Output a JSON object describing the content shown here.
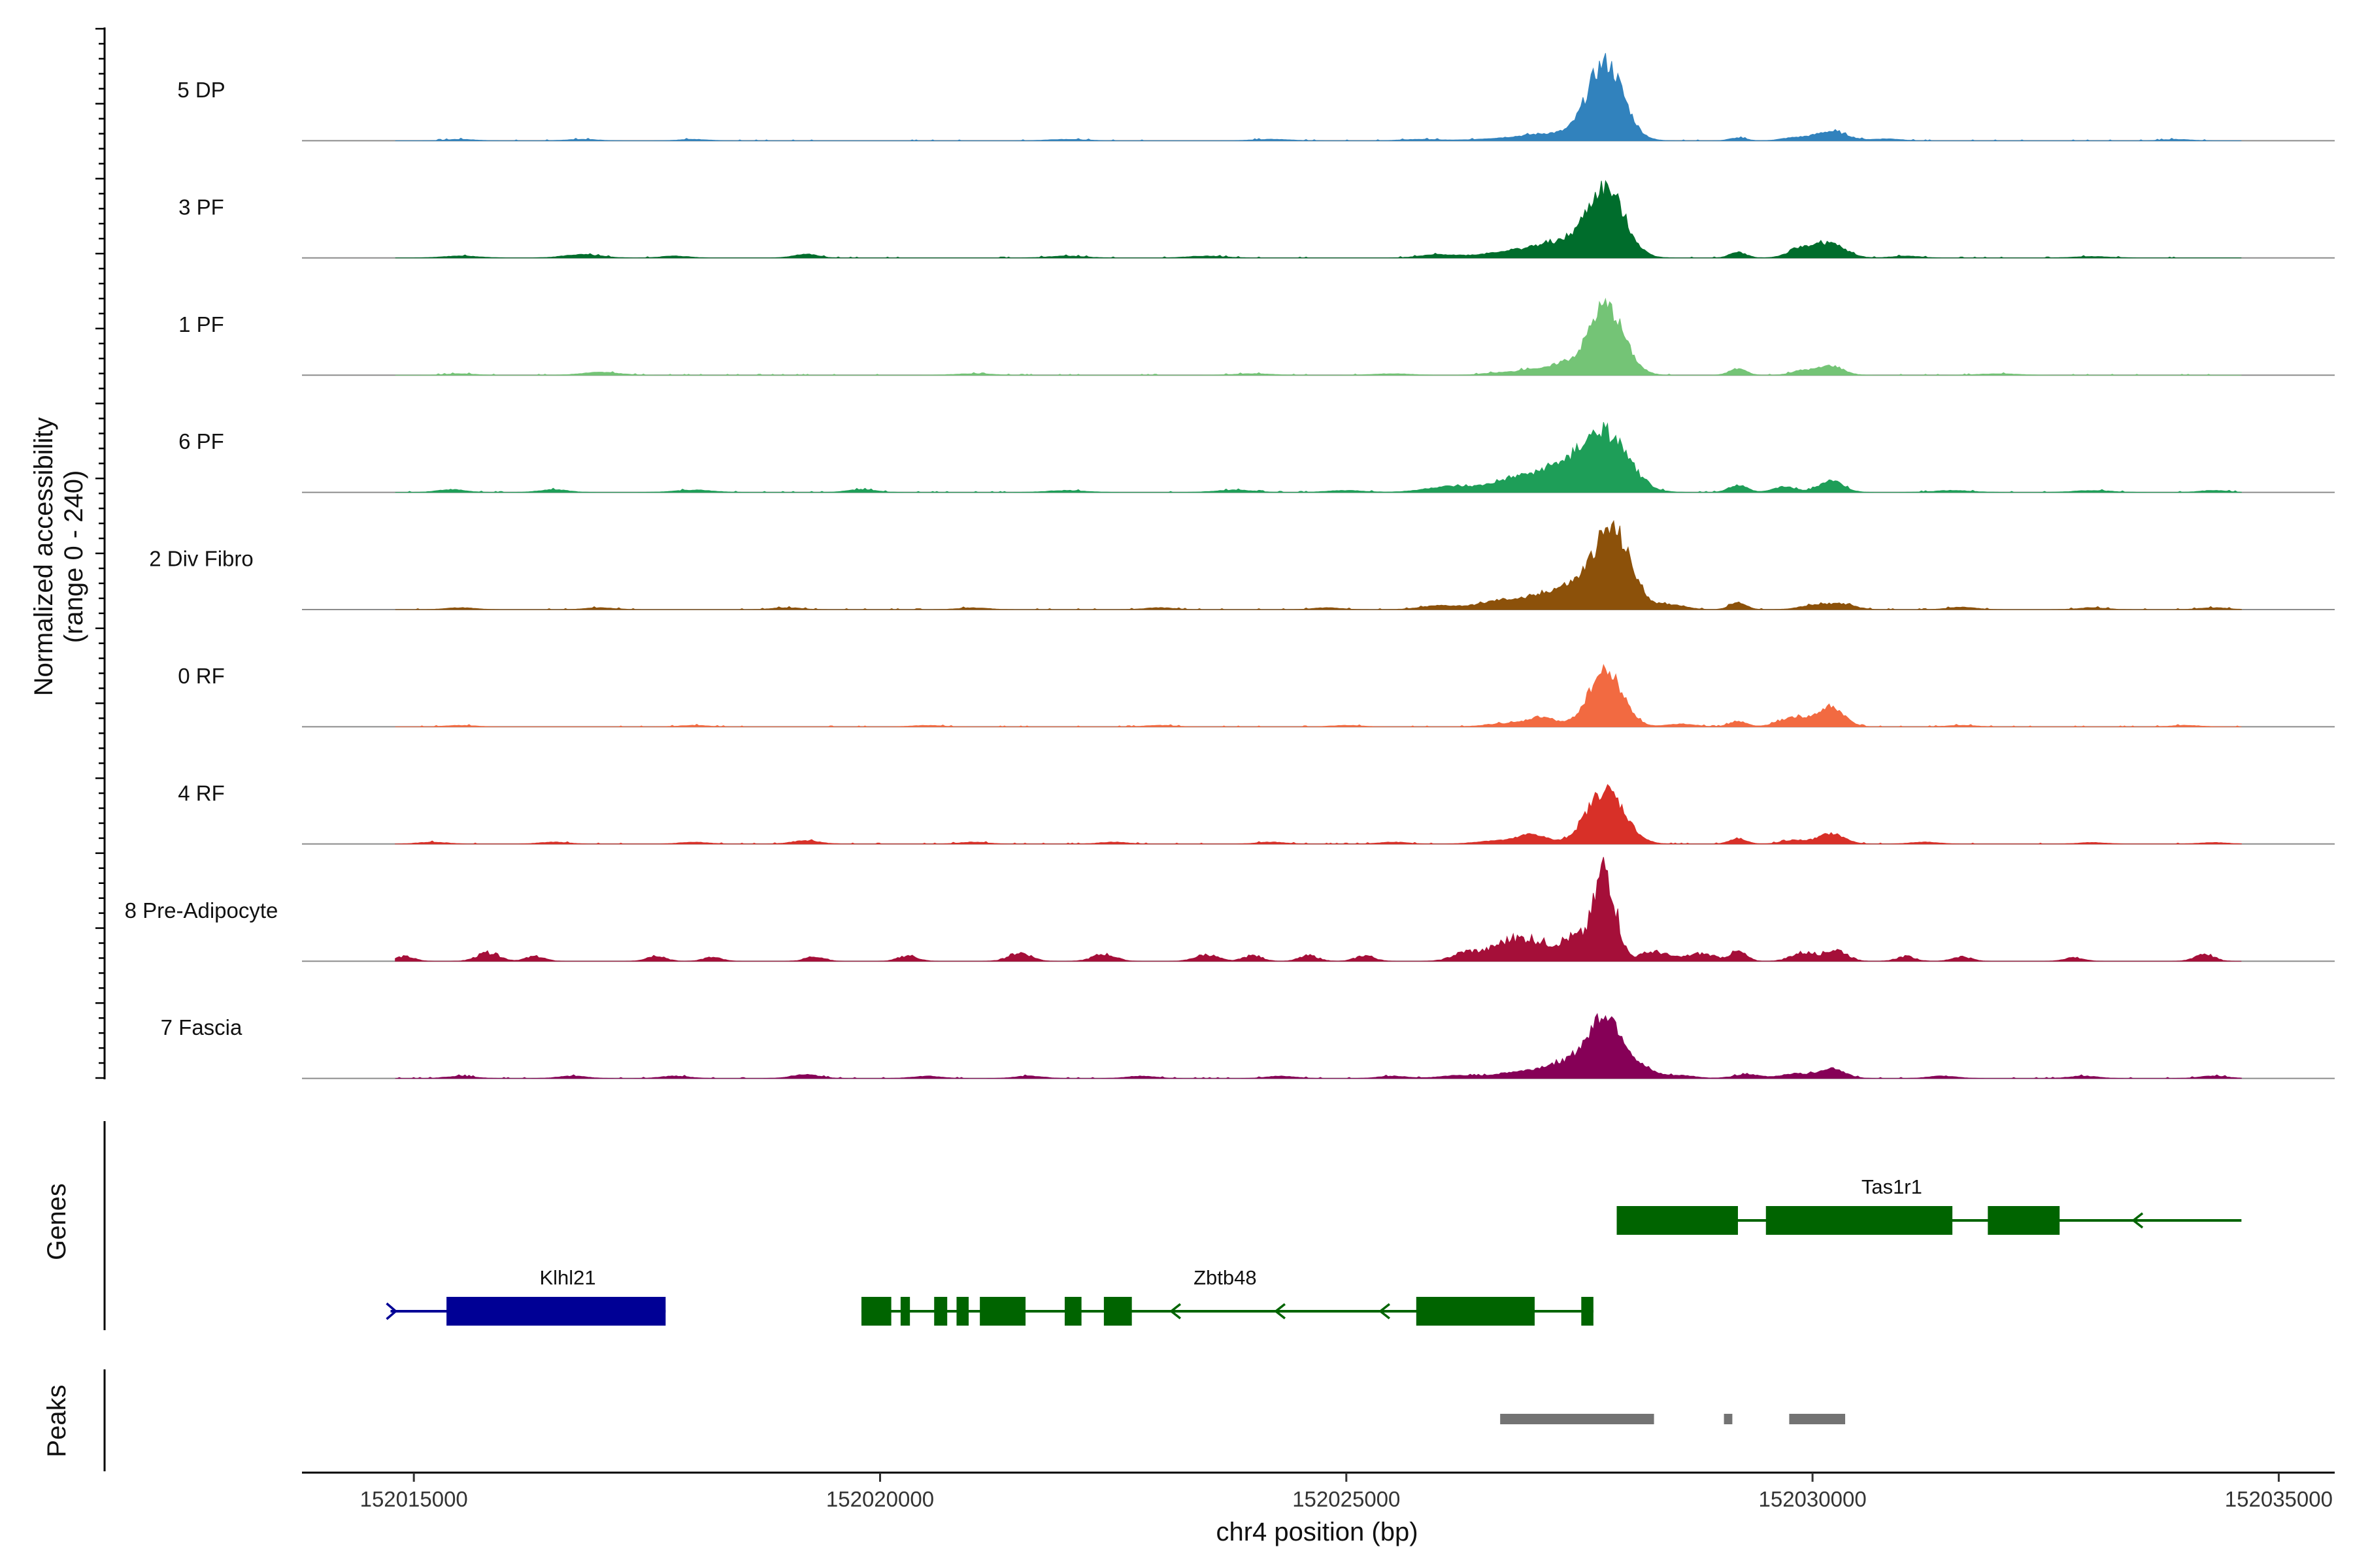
{
  "chart_data": {
    "type": "area",
    "title": "",
    "ylabel": "Normalized accessibility\n(range 0 - 240)",
    "xlabel": "chr4 position (bp)",
    "chromosome": "chr4",
    "xlim": [
      152013800,
      152035600
    ],
    "ylim": [
      0,
      240
    ],
    "x_ticks": [
      152015000,
      152020000,
      152025000,
      152030000,
      152035000
    ],
    "x_tick_labels": [
      "152015000",
      "152020000",
      "152025000",
      "152030000",
      "152035000"
    ],
    "coverage_range": [
      152014800,
      152034600
    ],
    "tracks": [
      {
        "name": "5 DP",
        "color": "#3182bd",
        "peaks": [
          [
            152027780,
            165,
            190
          ],
          [
            152027200,
            14,
            260
          ],
          [
            152026700,
            5,
            300
          ],
          [
            152029200,
            6,
            90
          ],
          [
            152030200,
            20,
            170
          ],
          [
            152029800,
            6,
            140
          ],
          [
            152033900,
            3,
            140
          ],
          [
            152022000,
            3,
            200
          ],
          [
            152018000,
            3,
            150
          ],
          [
            152016800,
            3,
            160
          ],
          [
            152015500,
            3,
            150
          ],
          [
            152030800,
            4,
            150
          ],
          [
            152024200,
            3,
            200
          ],
          [
            152025800,
            3,
            200
          ]
        ]
      },
      {
        "name": "3 PF",
        "color": "#006d2c",
        "peaks": [
          [
            152027780,
            145,
            200
          ],
          [
            152027250,
            30,
            260
          ],
          [
            152026700,
            12,
            260
          ],
          [
            152026000,
            7,
            200
          ],
          [
            152029200,
            12,
            90
          ],
          [
            152029900,
            20,
            150
          ],
          [
            152030200,
            28,
            160
          ],
          [
            152019200,
            8,
            130
          ],
          [
            152016800,
            7,
            200
          ],
          [
            152022000,
            4,
            200
          ],
          [
            152023500,
            4,
            200
          ],
          [
            152015500,
            4,
            200
          ],
          [
            152017800,
            4,
            150
          ],
          [
            152031000,
            4,
            150
          ],
          [
            152033000,
            3,
            200
          ]
        ]
      },
      {
        "name": "1 PF",
        "color": "#74c476",
        "peaks": [
          [
            152027780,
            150,
            190
          ],
          [
            152027300,
            22,
            120
          ],
          [
            152027000,
            12,
            120
          ],
          [
            152026700,
            6,
            200
          ],
          [
            152029200,
            14,
            90
          ],
          [
            152029900,
            10,
            120
          ],
          [
            152030200,
            20,
            130
          ],
          [
            152017000,
            6,
            200
          ],
          [
            152021000,
            3,
            200
          ],
          [
            152024000,
            3,
            200
          ],
          [
            152025500,
            3,
            200
          ],
          [
            152015500,
            3,
            150
          ],
          [
            152032000,
            3,
            200
          ]
        ]
      },
      {
        "name": "6 PF",
        "color": "#1e9e58",
        "peaks": [
          [
            152027780,
            120,
            240
          ],
          [
            152027300,
            45,
            260
          ],
          [
            152026800,
            25,
            260
          ],
          [
            152026100,
            12,
            260
          ],
          [
            152029200,
            15,
            100
          ],
          [
            152029700,
            12,
            120
          ],
          [
            152030200,
            25,
            130
          ],
          [
            152015400,
            6,
            150
          ],
          [
            152016500,
            6,
            150
          ],
          [
            152018000,
            5,
            200
          ],
          [
            152019800,
            6,
            150
          ],
          [
            152022000,
            4,
            200
          ],
          [
            152023800,
            5,
            200
          ],
          [
            152025000,
            4,
            200
          ],
          [
            152031500,
            4,
            200
          ],
          [
            152033000,
            4,
            200
          ],
          [
            152034300,
            4,
            150
          ]
        ]
      },
      {
        "name": "2 Div Fibro",
        "color": "#8c510a",
        "peaks": [
          [
            152027850,
            165,
            200
          ],
          [
            152027350,
            45,
            260
          ],
          [
            152026700,
            20,
            260
          ],
          [
            152026000,
            8,
            200
          ],
          [
            152028500,
            10,
            150
          ],
          [
            152029200,
            15,
            90
          ],
          [
            152030000,
            8,
            150
          ],
          [
            152030300,
            12,
            150
          ],
          [
            152015500,
            4,
            150
          ],
          [
            152017000,
            4,
            150
          ],
          [
            152019000,
            4,
            150
          ],
          [
            152021000,
            4,
            150
          ],
          [
            152023000,
            4,
            150
          ],
          [
            152024800,
            4,
            150
          ],
          [
            152031600,
            5,
            150
          ],
          [
            152033000,
            4,
            150
          ],
          [
            152034300,
            4,
            150
          ]
        ]
      },
      {
        "name": "0 RF",
        "color": "#f26a41",
        "peaks": [
          [
            152027780,
            120,
            180
          ],
          [
            152027100,
            20,
            150
          ],
          [
            152026700,
            7,
            200
          ],
          [
            152028600,
            6,
            150
          ],
          [
            152029200,
            12,
            90
          ],
          [
            152029800,
            20,
            160
          ],
          [
            152030200,
            40,
            140
          ],
          [
            152015500,
            3,
            150
          ],
          [
            152018000,
            3,
            150
          ],
          [
            152020500,
            3,
            150
          ],
          [
            152023000,
            3,
            150
          ],
          [
            152025000,
            3,
            150
          ],
          [
            152031600,
            3,
            150
          ],
          [
            152034000,
            3,
            150
          ]
        ]
      },
      {
        "name": "4 RF",
        "color": "#d83028",
        "peaks": [
          [
            152027780,
            115,
            200
          ],
          [
            152027000,
            20,
            150
          ],
          [
            152026600,
            7,
            200
          ],
          [
            152029200,
            12,
            90
          ],
          [
            152030200,
            22,
            140
          ],
          [
            152029800,
            8,
            130
          ],
          [
            152015200,
            4,
            150
          ],
          [
            152016500,
            4,
            150
          ],
          [
            152018000,
            4,
            150
          ],
          [
            152019200,
            7,
            150
          ],
          [
            152021000,
            4,
            150
          ],
          [
            152022500,
            4,
            150
          ],
          [
            152024200,
            4,
            150
          ],
          [
            152025500,
            4,
            150
          ],
          [
            152031200,
            4,
            150
          ],
          [
            152033000,
            3,
            150
          ],
          [
            152034300,
            3,
            150
          ]
        ]
      },
      {
        "name": "8 Pre-Adipocyte",
        "color": "#a50f39",
        "peaks": [
          [
            152027780,
            190,
            110
          ],
          [
            152027450,
            50,
            180
          ],
          [
            152027000,
            40,
            160
          ],
          [
            152026700,
            35,
            160
          ],
          [
            152026300,
            20,
            150
          ],
          [
            152028300,
            20,
            150
          ],
          [
            152028800,
            16,
            150
          ],
          [
            152029200,
            20,
            90
          ],
          [
            152029900,
            18,
            130
          ],
          [
            152030250,
            24,
            120
          ],
          [
            152014900,
            10,
            100
          ],
          [
            152015800,
            18,
            120
          ],
          [
            152016300,
            10,
            100
          ],
          [
            152017600,
            12,
            100
          ],
          [
            152018200,
            8,
            100
          ],
          [
            152019300,
            10,
            100
          ],
          [
            152020300,
            12,
            100
          ],
          [
            152021500,
            18,
            120
          ],
          [
            152022400,
            15,
            120
          ],
          [
            152023500,
            14,
            120
          ],
          [
            152024000,
            12,
            100
          ],
          [
            152024600,
            12,
            100
          ],
          [
            152025200,
            12,
            100
          ],
          [
            152031000,
            10,
            100
          ],
          [
            152031600,
            10,
            100
          ],
          [
            152032800,
            8,
            100
          ],
          [
            152034200,
            16,
            100
          ]
        ]
      },
      {
        "name": "7 Fascia",
        "color": "#860057",
        "peaks": [
          [
            152027780,
            135,
            190
          ],
          [
            152027300,
            30,
            220
          ],
          [
            152026800,
            12,
            220
          ],
          [
            152026200,
            6,
            200
          ],
          [
            152028200,
            14,
            150
          ],
          [
            152028600,
            6,
            150
          ],
          [
            152029300,
            8,
            150
          ],
          [
            152029800,
            10,
            140
          ],
          [
            152030200,
            22,
            140
          ],
          [
            152015500,
            5,
            150
          ],
          [
            152016700,
            5,
            150
          ],
          [
            152017800,
            5,
            150
          ],
          [
            152019200,
            8,
            150
          ],
          [
            152020500,
            5,
            150
          ],
          [
            152021600,
            5,
            150
          ],
          [
            152022800,
            5,
            150
          ],
          [
            152024300,
            5,
            150
          ],
          [
            152025500,
            5,
            150
          ],
          [
            152031400,
            5,
            150
          ],
          [
            152032900,
            5,
            150
          ],
          [
            152034300,
            5,
            150
          ]
        ]
      }
    ],
    "gene_track_label": "Genes",
    "genes": [
      {
        "name": "Klhl21",
        "color": "#000095",
        "strand": "+",
        "row": 2,
        "start": 152014750,
        "end": 152017700,
        "exons": [
          [
            152015350,
            152017700
          ]
        ]
      },
      {
        "name": "Zbtb48",
        "color": "#006400",
        "strand": "-",
        "row": 2,
        "start": 152019800,
        "end": 152027650,
        "exons": [
          [
            152019800,
            152020120
          ],
          [
            152020220,
            152020320
          ],
          [
            152020580,
            152020720
          ],
          [
            152020820,
            152020950
          ],
          [
            152021070,
            152021560
          ],
          [
            152021980,
            152022160
          ],
          [
            152022400,
            152022700
          ],
          [
            152025750,
            152027020
          ],
          [
            152027520,
            152027650
          ]
        ]
      },
      {
        "name": "Tas1r1",
        "color": "#006400",
        "strand": "-",
        "row": 1,
        "start": 152027900,
        "end": 152034600,
        "exons": [
          [
            152027900,
            152029200
          ],
          [
            152029500,
            152031500
          ],
          [
            152031880,
            152032650
          ]
        ]
      }
    ],
    "peaks_track_label": "Peaks",
    "peak_regions": [
      [
        152026650,
        152028300
      ],
      [
        152029050,
        152029140
      ],
      [
        152029750,
        152030350
      ]
    ],
    "peak_color": "#737373"
  }
}
